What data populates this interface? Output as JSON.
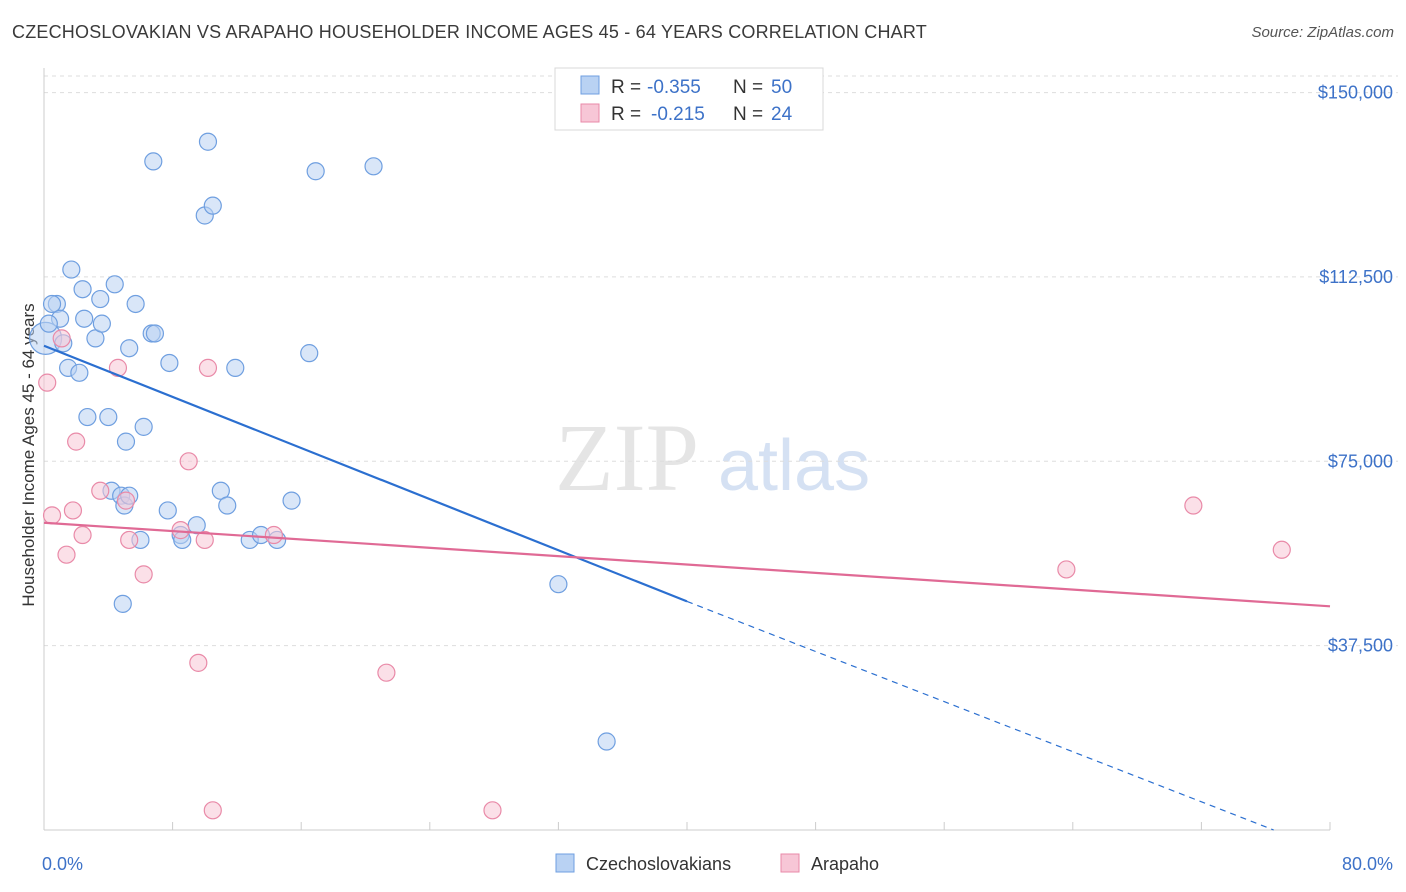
{
  "title": "CZECHOSLOVAKIAN VS ARAPAHO HOUSEHOLDER INCOME AGES 45 - 64 YEARS CORRELATION CHART",
  "source": "Source: ZipAtlas.com",
  "watermark": {
    "zip": "ZIP",
    "atlas": "atlas"
  },
  "colors": {
    "blue": "#6f9fe0",
    "blue_fill": "#b9d2f3",
    "blue_line": "#2b6fd0",
    "pink": "#e98aa8",
    "pink_fill": "#f7c6d6",
    "pink_line": "#e06a95",
    "axis_text": "#3d72c8",
    "grid": "#dddddd"
  },
  "legend": {
    "rows": [
      {
        "r_label": "R =",
        "r_value": "-0.355",
        "n_label": "N =",
        "n_value": "50"
      },
      {
        "r_label": "R =",
        "r_value": "-0.215",
        "n_label": "N =",
        "n_value": "24"
      }
    ]
  },
  "chart_data": {
    "type": "scatter",
    "title": "CZECHOSLOVAKIAN VS ARAPAHO HOUSEHOLDER INCOME AGES 45 - 64 YEARS CORRELATION CHART",
    "xlabel": "",
    "ylabel": "Householder Income Ages 45 - 64 years",
    "xlim": [
      0,
      80
    ],
    "ylim": [
      0,
      155000
    ],
    "x_tick_labels": [
      "0.0%",
      "80.0%"
    ],
    "y_ticks": [
      37500,
      75000,
      112500,
      150000
    ],
    "y_tick_labels": [
      "$37,500",
      "$75,000",
      "$112,500",
      "$150,000"
    ],
    "grid": true,
    "legend_placement": "top-center",
    "series": [
      {
        "name": "Czechoslovakians",
        "color": "#6f9fe0",
        "r": -0.355,
        "n": 50,
        "trend": {
          "x": [
            0,
            40
          ],
          "y": [
            98500,
            46500
          ],
          "dashed_to": [
            76.5,
            0
          ]
        },
        "points": [
          [
            0.1,
            100000
          ],
          [
            0.8,
            107000
          ],
          [
            0.5,
            107000
          ],
          [
            1.0,
            104000
          ],
          [
            1.2,
            99000
          ],
          [
            1.7,
            114000
          ],
          [
            1.5,
            94000
          ],
          [
            2.2,
            93000
          ],
          [
            2.4,
            110000
          ],
          [
            2.5,
            104000
          ],
          [
            2.7,
            84000
          ],
          [
            3.2,
            100000
          ],
          [
            3.5,
            108000
          ],
          [
            3.6,
            103000
          ],
          [
            4.0,
            84000
          ],
          [
            4.4,
            111000
          ],
          [
            4.2,
            69000
          ],
          [
            4.8,
            68000
          ],
          [
            5.0,
            66000
          ],
          [
            5.3,
            68000
          ],
          [
            5.1,
            79000
          ],
          [
            5.3,
            98000
          ],
          [
            5.7,
            107000
          ],
          [
            6.0,
            59000
          ],
          [
            6.7,
            101000
          ],
          [
            6.9,
            101000
          ],
          [
            6.8,
            136000
          ],
          [
            6.2,
            82000
          ],
          [
            7.8,
            95000
          ],
          [
            7.7,
            65000
          ],
          [
            8.5,
            60000
          ],
          [
            8.6,
            59000
          ],
          [
            9.5,
            62000
          ],
          [
            10.0,
            125000
          ],
          [
            10.2,
            140000
          ],
          [
            10.5,
            127000
          ],
          [
            11.0,
            69000
          ],
          [
            11.4,
            66000
          ],
          [
            11.9,
            94000
          ],
          [
            12.8,
            59000
          ],
          [
            13.5,
            60000
          ],
          [
            14.5,
            59000
          ],
          [
            15.4,
            67000
          ],
          [
            16.5,
            97000
          ],
          [
            16.9,
            134000
          ],
          [
            20.5,
            135000
          ],
          [
            0.3,
            103000
          ],
          [
            4.9,
            46000
          ],
          [
            32.0,
            50000
          ],
          [
            35.0,
            18000
          ]
        ]
      },
      {
        "name": "Arapaho",
        "color": "#e98aa8",
        "r": -0.215,
        "n": 24,
        "trend": {
          "x": [
            0,
            80
          ],
          "y": [
            62500,
            45500
          ]
        },
        "points": [
          [
            0.2,
            91000
          ],
          [
            0.5,
            64000
          ],
          [
            1.1,
            100000
          ],
          [
            1.4,
            56000
          ],
          [
            1.8,
            65000
          ],
          [
            2.0,
            79000
          ],
          [
            2.4,
            60000
          ],
          [
            3.5,
            69000
          ],
          [
            4.6,
            94000
          ],
          [
            5.1,
            67000
          ],
          [
            5.3,
            59000
          ],
          [
            6.2,
            52000
          ],
          [
            8.5,
            61000
          ],
          [
            9.0,
            75000
          ],
          [
            9.6,
            34000
          ],
          [
            10.0,
            59000
          ],
          [
            10.2,
            94000
          ],
          [
            10.5,
            4000
          ],
          [
            14.3,
            60000
          ],
          [
            21.3,
            32000
          ],
          [
            27.9,
            4000
          ],
          [
            63.6,
            53000
          ],
          [
            71.5,
            66000
          ],
          [
            77.0,
            57000
          ]
        ]
      }
    ]
  }
}
